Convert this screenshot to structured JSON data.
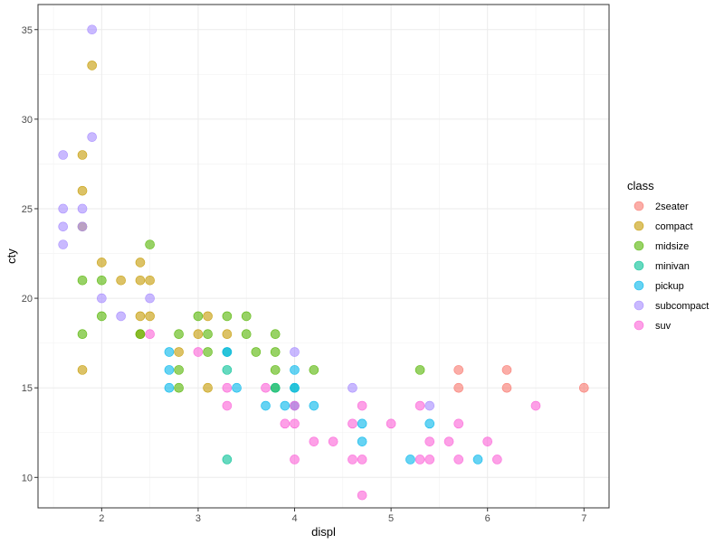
{
  "chart_data": {
    "type": "scatter",
    "title": "",
    "xlabel": "displ",
    "ylabel": "cty",
    "xlim": [
      1.34,
      7.26
    ],
    "ylim": [
      8.3,
      36.4
    ],
    "x_ticks": [
      2,
      3,
      4,
      5,
      6,
      7
    ],
    "y_ticks": [
      10,
      15,
      20,
      25,
      30,
      35
    ],
    "grid": true,
    "legend": {
      "title": "class",
      "placement": "right"
    },
    "point_opacity": 0.6,
    "series": [
      {
        "name": "2seater",
        "color": "#F8766D",
        "points": [
          [
            5.7,
            16
          ],
          [
            5.7,
            15
          ],
          [
            6.2,
            16
          ],
          [
            6.2,
            15
          ],
          [
            7.0,
            15
          ]
        ]
      },
      {
        "name": "compact",
        "color": "#C49A00",
        "points": [
          [
            1.9,
            33
          ],
          [
            1.8,
            28
          ],
          [
            1.8,
            26
          ],
          [
            1.8,
            24
          ],
          [
            2.0,
            22
          ],
          [
            2.2,
            21
          ],
          [
            2.4,
            22
          ],
          [
            2.4,
            21
          ],
          [
            2.5,
            21
          ],
          [
            2.4,
            19
          ],
          [
            2.5,
            19
          ],
          [
            2.4,
            18
          ],
          [
            1.8,
            16
          ],
          [
            2.8,
            17
          ],
          [
            3.0,
            18
          ],
          [
            3.1,
            15
          ],
          [
            3.3,
            18
          ],
          [
            3.1,
            19
          ]
        ]
      },
      {
        "name": "midsize",
        "color": "#53B400",
        "points": [
          [
            2.5,
            23
          ],
          [
            1.8,
            21
          ],
          [
            2.0,
            21
          ],
          [
            2.0,
            19
          ],
          [
            1.8,
            18
          ],
          [
            2.4,
            18
          ],
          [
            2.8,
            18
          ],
          [
            2.8,
            16
          ],
          [
            2.8,
            15
          ],
          [
            3.0,
            19
          ],
          [
            3.1,
            18
          ],
          [
            3.1,
            17
          ],
          [
            3.3,
            19
          ],
          [
            3.5,
            19
          ],
          [
            3.5,
            18
          ],
          [
            3.6,
            17
          ],
          [
            3.8,
            18
          ],
          [
            3.8,
            17
          ],
          [
            3.8,
            16
          ],
          [
            3.8,
            15
          ],
          [
            4.2,
            16
          ],
          [
            5.3,
            16
          ]
        ]
      },
      {
        "name": "minivan",
        "color": "#00C094",
        "points": [
          [
            3.3,
            17
          ],
          [
            3.3,
            16
          ],
          [
            3.8,
            15
          ],
          [
            3.3,
            11
          ],
          [
            4.0,
            15
          ]
        ]
      },
      {
        "name": "pickup",
        "color": "#00B6EB",
        "points": [
          [
            2.7,
            17
          ],
          [
            2.7,
            16
          ],
          [
            2.7,
            15
          ],
          [
            3.3,
            17
          ],
          [
            3.4,
            15
          ],
          [
            3.7,
            14
          ],
          [
            3.9,
            14
          ],
          [
            4.0,
            16
          ],
          [
            4.0,
            15
          ],
          [
            4.2,
            14
          ],
          [
            4.7,
            13
          ],
          [
            4.7,
            12
          ],
          [
            5.2,
            11
          ],
          [
            5.4,
            13
          ],
          [
            5.9,
            11
          ],
          [
            4.0,
            14
          ]
        ]
      },
      {
        "name": "subcompact",
        "color": "#A58AFF",
        "points": [
          [
            1.9,
            35
          ],
          [
            1.9,
            29
          ],
          [
            1.6,
            28
          ],
          [
            1.6,
            25
          ],
          [
            1.8,
            25
          ],
          [
            1.6,
            24
          ],
          [
            1.8,
            24
          ],
          [
            1.6,
            23
          ],
          [
            2.0,
            20
          ],
          [
            2.5,
            20
          ],
          [
            2.2,
            19
          ],
          [
            4.0,
            17
          ],
          [
            4.6,
            15
          ],
          [
            5.4,
            14
          ]
        ]
      },
      {
        "name": "suv",
        "color": "#FB61D7",
        "points": [
          [
            2.5,
            18
          ],
          [
            3.0,
            17
          ],
          [
            3.3,
            15
          ],
          [
            3.3,
            14
          ],
          [
            3.7,
            15
          ],
          [
            3.9,
            13
          ],
          [
            4.0,
            14
          ],
          [
            4.0,
            13
          ],
          [
            4.0,
            11
          ],
          [
            4.2,
            12
          ],
          [
            4.4,
            12
          ],
          [
            4.6,
            13
          ],
          [
            4.6,
            11
          ],
          [
            4.7,
            14
          ],
          [
            4.7,
            11
          ],
          [
            4.7,
            9
          ],
          [
            5.0,
            13
          ],
          [
            5.3,
            14
          ],
          [
            5.3,
            11
          ],
          [
            5.4,
            12
          ],
          [
            5.4,
            11
          ],
          [
            5.6,
            12
          ],
          [
            5.7,
            13
          ],
          [
            5.7,
            11
          ],
          [
            6.0,
            12
          ],
          [
            6.1,
            11
          ],
          [
            6.5,
            14
          ]
        ]
      }
    ]
  }
}
